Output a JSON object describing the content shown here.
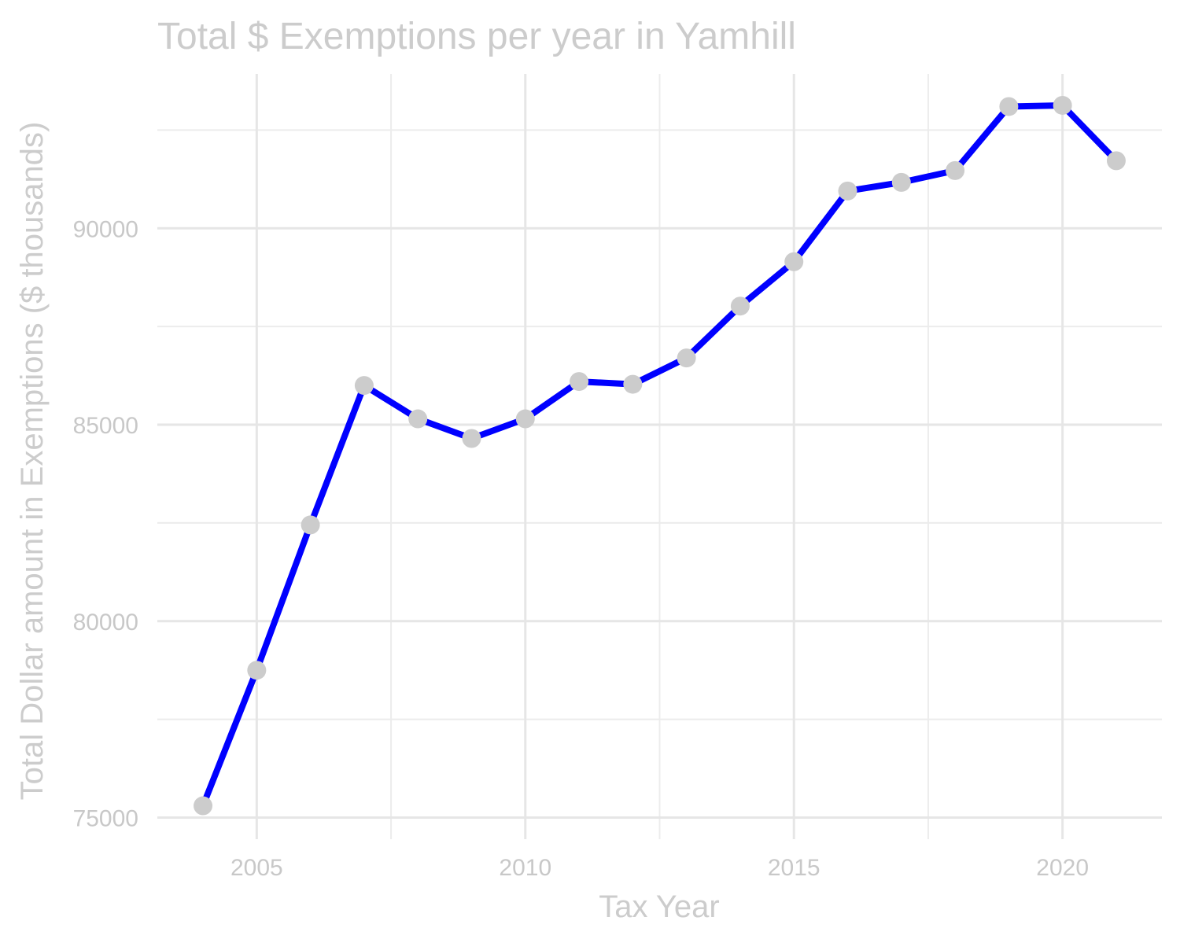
{
  "chart_data": {
    "type": "line",
    "title": "Total $ Exemptions per year in Yamhill",
    "xlabel": "Tax Year",
    "ylabel": "Total Dollar amount in Exemptions ($ thousands)",
    "x": [
      2004,
      2005,
      2006,
      2007,
      2008,
      2009,
      2010,
      2011,
      2012,
      2013,
      2014,
      2015,
      2016,
      2017,
      2018,
      2019,
      2020,
      2021
    ],
    "y": [
      75300,
      78750,
      82450,
      86000,
      85150,
      84650,
      85150,
      86100,
      86030,
      86700,
      88020,
      89150,
      90950,
      91170,
      91470,
      93100,
      93130,
      91720
    ],
    "xlim": [
      2003.15,
      2021.85
    ],
    "ylim": [
      74450,
      93930
    ],
    "xticks": [
      2005,
      2010,
      2015,
      2020
    ],
    "yticks": [
      75000,
      80000,
      85000,
      90000
    ],
    "grid": true,
    "legend": "none",
    "colors": {
      "line": "#0000ff",
      "points": "#cccccc",
      "text": "#cccccc",
      "grid": "#e6e6e6"
    }
  }
}
